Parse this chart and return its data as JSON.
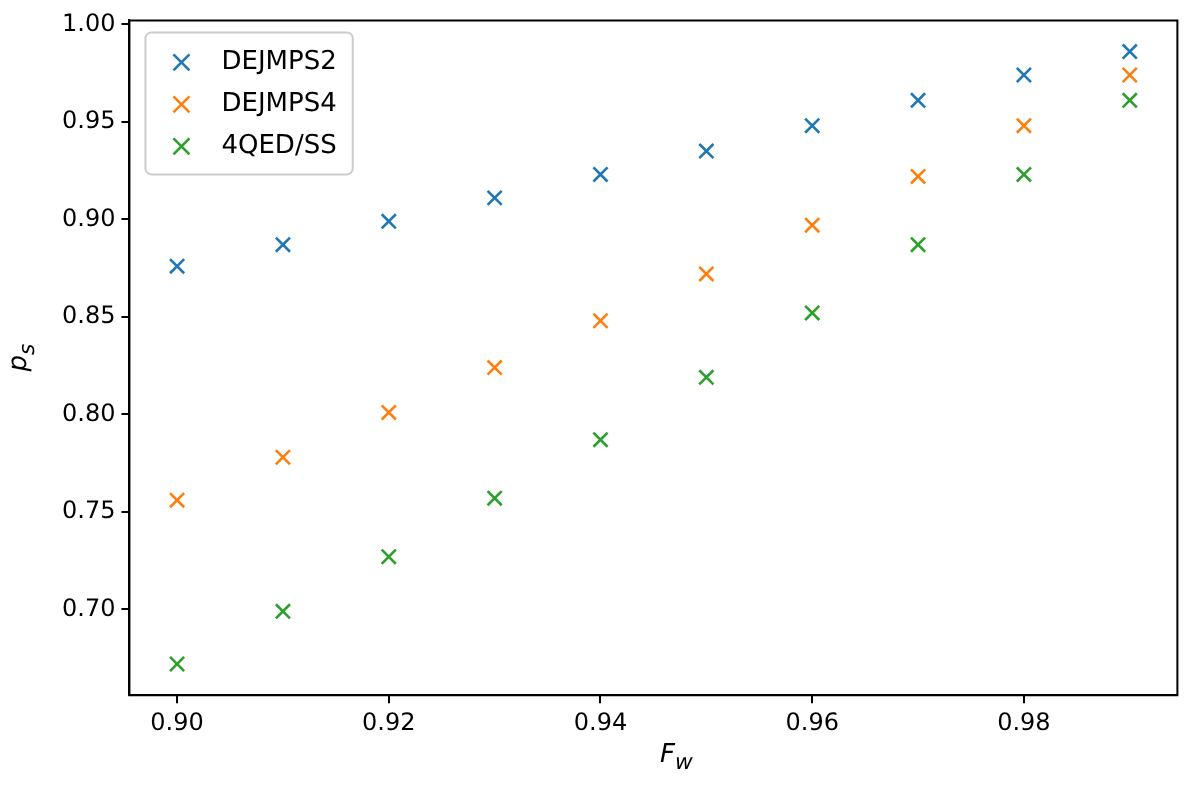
{
  "chart_data": {
    "type": "scatter",
    "xlabel": "F$_{w}$",
    "ylabel": "p$_{s}$",
    "x": [
      0.9,
      0.91,
      0.92,
      0.93,
      0.94,
      0.95,
      0.96,
      0.97,
      0.98,
      0.99
    ],
    "series": [
      {
        "name": "DEJMPS2",
        "color": "#1f77b4",
        "values": [
          0.876,
          0.887,
          0.899,
          0.911,
          0.923,
          0.935,
          0.948,
          0.961,
          0.974,
          0.986
        ]
      },
      {
        "name": "DEJMPS4",
        "color": "#ff7f0e",
        "values": [
          0.756,
          0.778,
          0.801,
          0.824,
          0.848,
          0.872,
          0.897,
          0.922,
          0.948,
          0.974
        ]
      },
      {
        "name": "4QED/SS",
        "color": "#2ca02c",
        "values": [
          0.672,
          0.699,
          0.727,
          0.757,
          0.787,
          0.819,
          0.852,
          0.887,
          0.923,
          0.961
        ]
      }
    ],
    "xlim": [
      0.8955,
      0.9945
    ],
    "xticks": [
      {
        "value": 0.9,
        "label": "0.90"
      },
      {
        "value": 0.92,
        "label": "0.92"
      },
      {
        "value": 0.94,
        "label": "0.94"
      },
      {
        "value": 0.96,
        "label": "0.96"
      },
      {
        "value": 0.98,
        "label": "0.98"
      }
    ],
    "ylim": [
      0.656,
      1.002
    ],
    "yticks": [
      {
        "value": 0.7,
        "label": "0.70"
      },
      {
        "value": 0.75,
        "label": "0.75"
      },
      {
        "value": 0.8,
        "label": "0.80"
      },
      {
        "value": 0.85,
        "label": "0.85"
      },
      {
        "value": 0.9,
        "label": "0.90"
      },
      {
        "value": 0.95,
        "label": "0.95"
      },
      {
        "value": 1.0,
        "label": "1.00"
      }
    ],
    "legend": "top left",
    "marker": "cross",
    "grid": false
  }
}
